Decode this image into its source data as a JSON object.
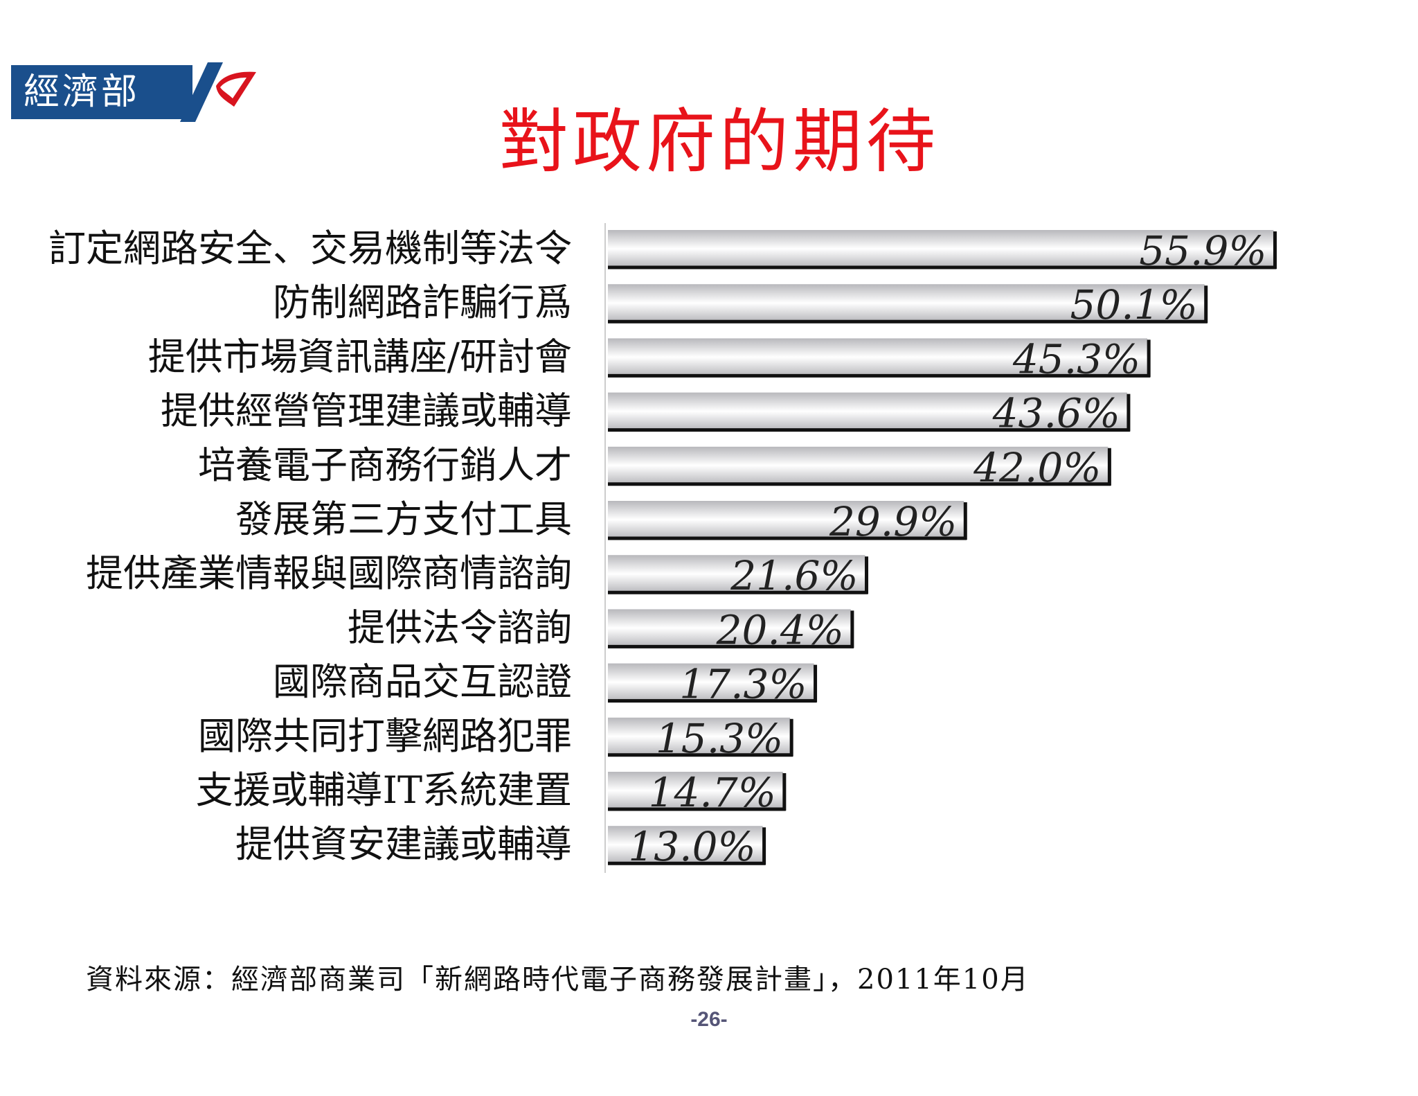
{
  "header": {
    "logo_text": "經濟部",
    "logo_colors": {
      "box": "#1a4f8c",
      "mark_blue": "#1a4f8c",
      "mark_red": "#d8141f"
    }
  },
  "title": "對政府的期待",
  "chart_data": {
    "type": "bar",
    "orientation": "horizontal",
    "categories": [
      "訂定網路安全、交易機制等法令",
      "防制網路詐騙行爲",
      "提供市場資訊講座/研討會",
      "提供經營管理建議或輔導",
      "培養電子商務行銷人才",
      "發展第三方支付工具",
      "提供產業情報與國際商情諮詢",
      "提供法令諮詢",
      "國際商品交互認證",
      "國際共同打擊網路犯罪",
      "支援或輔導IT系統建置",
      "提供資安建議或輔導"
    ],
    "values": [
      55.9,
      50.1,
      45.3,
      43.6,
      42.0,
      29.9,
      21.6,
      20.4,
      17.3,
      15.3,
      14.7,
      13.0
    ],
    "value_labels": [
      "55.9%",
      "50.1%",
      "45.3%",
      "43.6%",
      "42.0%",
      "29.9%",
      "21.6%",
      "20.4%",
      "17.3%",
      "15.3%",
      "14.7%",
      "13.0%"
    ],
    "unit": "%",
    "xlim": [
      0,
      56
    ],
    "grid": false,
    "legend": "none",
    "bar_colors": {
      "light": "#ffffff",
      "dark": "#b8b8bc",
      "edge": "#111111"
    }
  },
  "footer": {
    "source": "資料來源：經濟部商業司「新網路時代電子商務發展計畫」，2011年10月",
    "page_number": "-26-"
  }
}
